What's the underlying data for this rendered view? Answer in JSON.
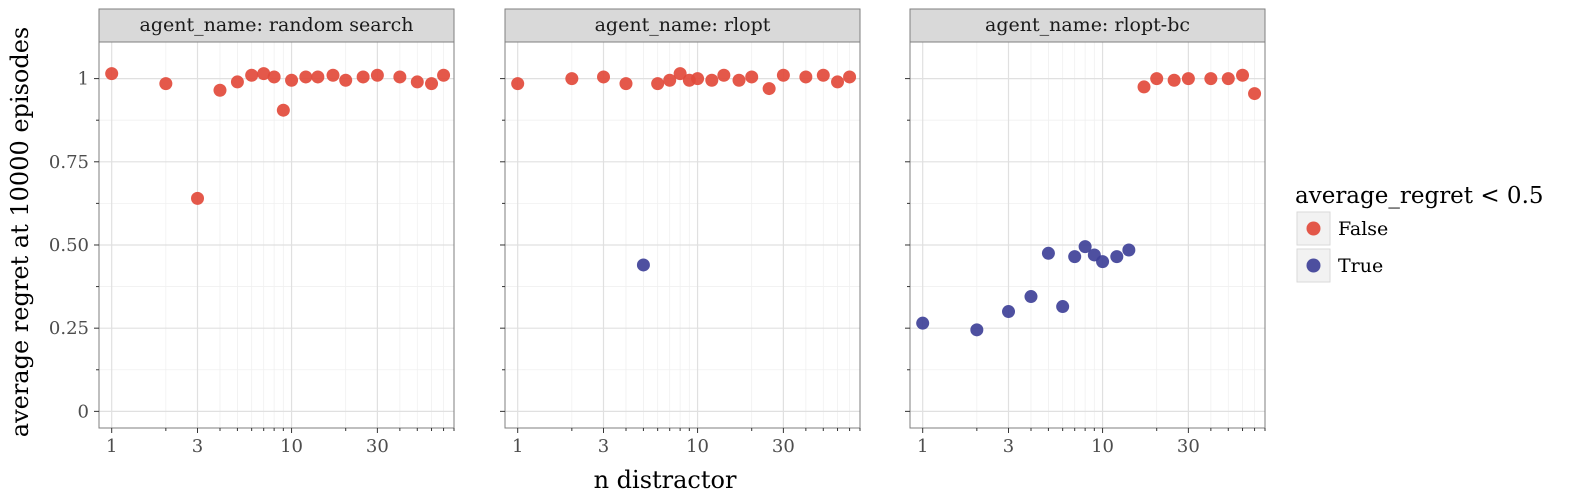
{
  "chart_data": {
    "type": "scatter",
    "xlabel": "n distractor",
    "ylabel": "average regret at 10000 episodes",
    "x_scale": "log10",
    "xlim": [
      0.85,
      80
    ],
    "ylim": [
      -0.05,
      1.11
    ],
    "x_ticks": [
      1,
      3,
      10,
      30
    ],
    "x_tick_labels": [
      "1",
      "3",
      "10",
      "30"
    ],
    "y_ticks": [
      0,
      0.25,
      0.5,
      0.75,
      1
    ],
    "y_tick_labels": [
      "0",
      "0.25",
      "0.50",
      "0.75",
      "1"
    ],
    "grid": true,
    "legend": {
      "title": "average_regret < 0.5",
      "position": "right",
      "entries": [
        {
          "label": "False",
          "color": "#E24A3B"
        },
        {
          "label": "True",
          "color": "#3F4198"
        }
      ]
    },
    "panels": [
      {
        "strip": "agent_name: random search",
        "points": [
          {
            "x": 1,
            "y": 1.015,
            "group": "False"
          },
          {
            "x": 2,
            "y": 0.985,
            "group": "False"
          },
          {
            "x": 3,
            "y": 0.64,
            "group": "False"
          },
          {
            "x": 4,
            "y": 0.965,
            "group": "False"
          },
          {
            "x": 5,
            "y": 0.99,
            "group": "False"
          },
          {
            "x": 6,
            "y": 1.01,
            "group": "False"
          },
          {
            "x": 7,
            "y": 1.015,
            "group": "False"
          },
          {
            "x": 8,
            "y": 1.005,
            "group": "False"
          },
          {
            "x": 9,
            "y": 0.905,
            "group": "False"
          },
          {
            "x": 10,
            "y": 0.995,
            "group": "False"
          },
          {
            "x": 12,
            "y": 1.005,
            "group": "False"
          },
          {
            "x": 14,
            "y": 1.005,
            "group": "False"
          },
          {
            "x": 17,
            "y": 1.01,
            "group": "False"
          },
          {
            "x": 20,
            "y": 0.995,
            "group": "False"
          },
          {
            "x": 25,
            "y": 1.005,
            "group": "False"
          },
          {
            "x": 30,
            "y": 1.01,
            "group": "False"
          },
          {
            "x": 40,
            "y": 1.005,
            "group": "False"
          },
          {
            "x": 50,
            "y": 0.99,
            "group": "False"
          },
          {
            "x": 60,
            "y": 0.985,
            "group": "False"
          },
          {
            "x": 70,
            "y": 1.01,
            "group": "False"
          }
        ]
      },
      {
        "strip": "agent_name: rlopt",
        "points": [
          {
            "x": 1,
            "y": 0.985,
            "group": "False"
          },
          {
            "x": 2,
            "y": 1.0,
            "group": "False"
          },
          {
            "x": 3,
            "y": 1.005,
            "group": "False"
          },
          {
            "x": 4,
            "y": 0.985,
            "group": "False"
          },
          {
            "x": 5,
            "y": 0.44,
            "group": "True"
          },
          {
            "x": 6,
            "y": 0.985,
            "group": "False"
          },
          {
            "x": 7,
            "y": 0.995,
            "group": "False"
          },
          {
            "x": 8,
            "y": 1.015,
            "group": "False"
          },
          {
            "x": 9,
            "y": 0.995,
            "group": "False"
          },
          {
            "x": 10,
            "y": 1.0,
            "group": "False"
          },
          {
            "x": 12,
            "y": 0.995,
            "group": "False"
          },
          {
            "x": 14,
            "y": 1.01,
            "group": "False"
          },
          {
            "x": 17,
            "y": 0.995,
            "group": "False"
          },
          {
            "x": 20,
            "y": 1.005,
            "group": "False"
          },
          {
            "x": 25,
            "y": 0.97,
            "group": "False"
          },
          {
            "x": 30,
            "y": 1.01,
            "group": "False"
          },
          {
            "x": 40,
            "y": 1.005,
            "group": "False"
          },
          {
            "x": 50,
            "y": 1.01,
            "group": "False"
          },
          {
            "x": 60,
            "y": 0.99,
            "group": "False"
          },
          {
            "x": 70,
            "y": 1.005,
            "group": "False"
          }
        ]
      },
      {
        "strip": "agent_name: rlopt-bc",
        "points": [
          {
            "x": 1,
            "y": 0.265,
            "group": "True"
          },
          {
            "x": 2,
            "y": 0.245,
            "group": "True"
          },
          {
            "x": 3,
            "y": 0.3,
            "group": "True"
          },
          {
            "x": 4,
            "y": 0.345,
            "group": "True"
          },
          {
            "x": 5,
            "y": 0.475,
            "group": "True"
          },
          {
            "x": 6,
            "y": 0.315,
            "group": "True"
          },
          {
            "x": 7,
            "y": 0.465,
            "group": "True"
          },
          {
            "x": 8,
            "y": 0.495,
            "group": "True"
          },
          {
            "x": 9,
            "y": 0.47,
            "group": "True"
          },
          {
            "x": 10,
            "y": 0.45,
            "group": "True"
          },
          {
            "x": 12,
            "y": 0.465,
            "group": "True"
          },
          {
            "x": 14,
            "y": 0.485,
            "group": "True"
          },
          {
            "x": 17,
            "y": 0.975,
            "group": "False"
          },
          {
            "x": 20,
            "y": 1.0,
            "group": "False"
          },
          {
            "x": 25,
            "y": 0.995,
            "group": "False"
          },
          {
            "x": 30,
            "y": 1.0,
            "group": "False"
          },
          {
            "x": 40,
            "y": 1.0,
            "group": "False"
          },
          {
            "x": 50,
            "y": 1.0,
            "group": "False"
          },
          {
            "x": 60,
            "y": 1.01,
            "group": "False"
          },
          {
            "x": 70,
            "y": 0.955,
            "group": "False"
          }
        ]
      }
    ]
  }
}
